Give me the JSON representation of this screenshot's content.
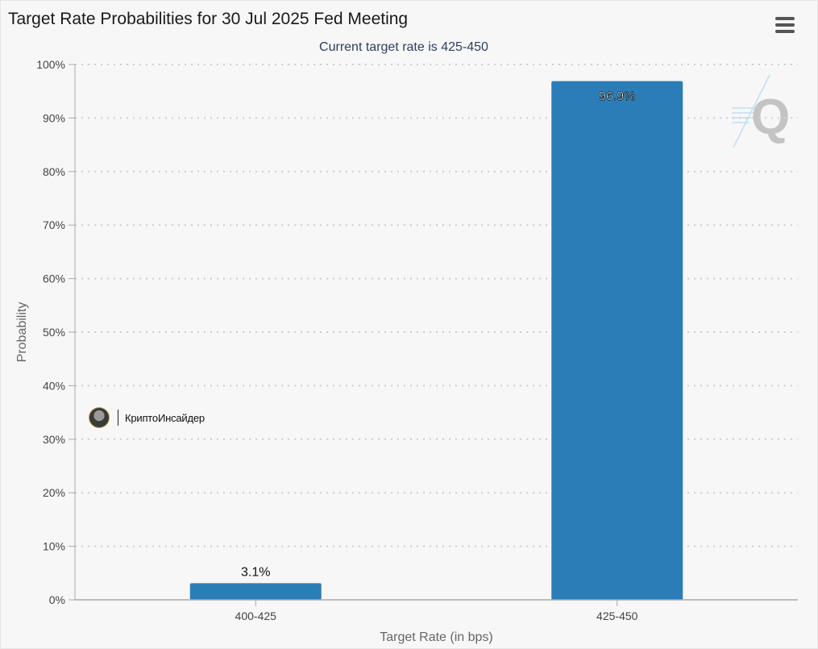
{
  "header": {
    "title": "Target Rate Probabilities for 30 Jul 2025 Fed Meeting",
    "subtitle": "Current target rate is 425-450",
    "menu_icon": "hamburger-menu-icon"
  },
  "watermark": {
    "brand_name": "КриптоИнсайдер",
    "logo_letter": "Q"
  },
  "colors": {
    "bar": "#2b7db8",
    "grid": "#cfcfcf",
    "axis": "#aaaaaa"
  },
  "chart_data": {
    "type": "bar",
    "categories": [
      "400-425",
      "425-450"
    ],
    "values": [
      3.1,
      96.9
    ],
    "data_labels": [
      "3.1%",
      "96.9%"
    ],
    "title": "Target Rate Probabilities for 30 Jul 2025 Fed Meeting",
    "subtitle": "Current target rate is 425-450",
    "xlabel": "Target Rate (in bps)",
    "ylabel": "Probability",
    "ylim": [
      0,
      100
    ],
    "yticks": [
      "0%",
      "10%",
      "20%",
      "30%",
      "40%",
      "50%",
      "60%",
      "70%",
      "80%",
      "90%",
      "100%"
    ],
    "grid": true,
    "legend": "none"
  }
}
